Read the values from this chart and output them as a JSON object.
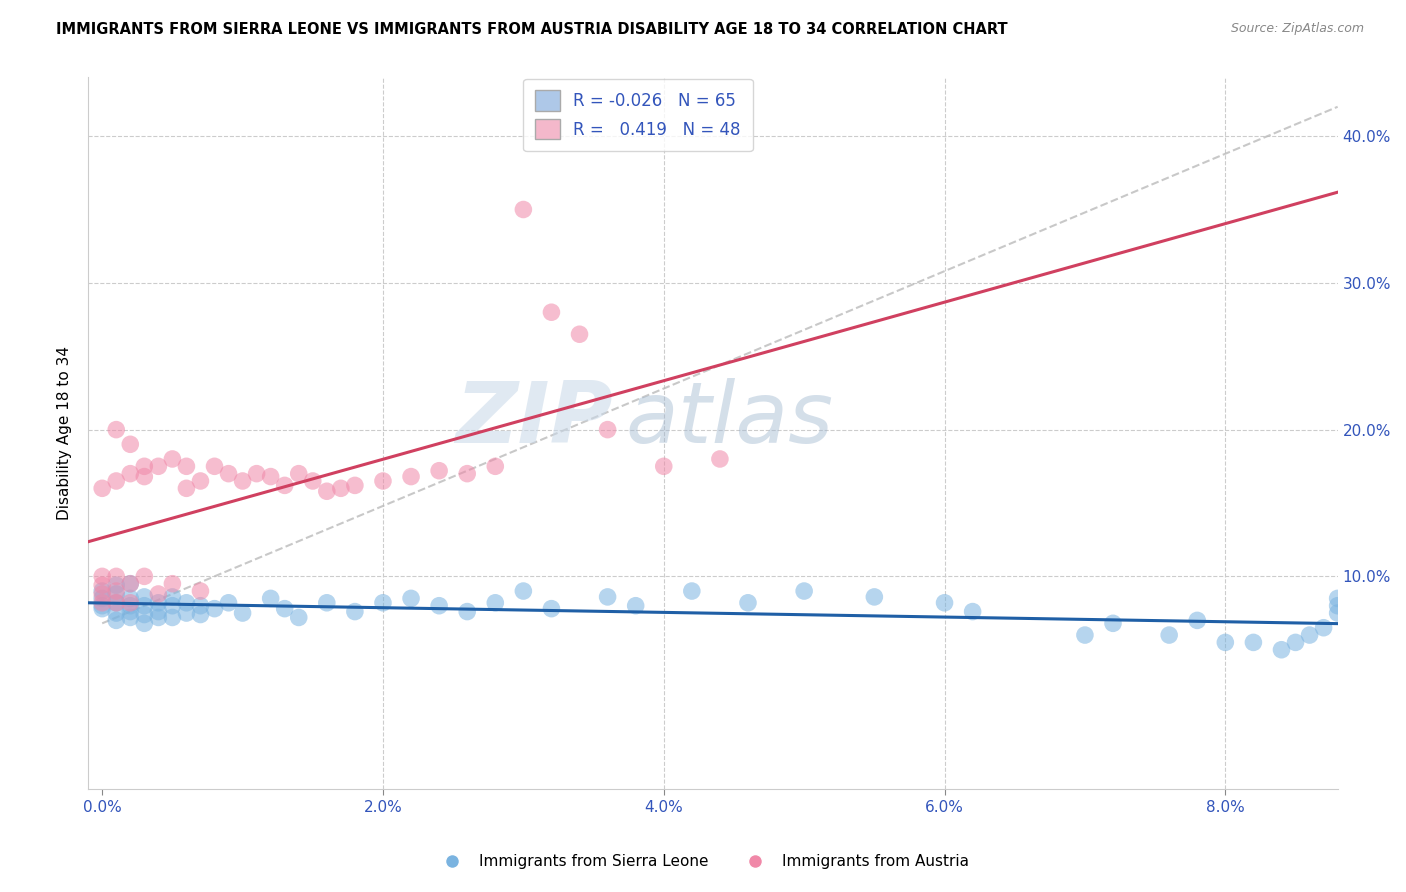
{
  "title": "IMMIGRANTS FROM SIERRA LEONE VS IMMIGRANTS FROM AUSTRIA DISABILITY AGE 18 TO 34 CORRELATION CHART",
  "source": "Source: ZipAtlas.com",
  "ylabel": "Disability Age 18 to 34",
  "x_ticks": [
    0.0,
    0.02,
    0.04,
    0.06,
    0.08
  ],
  "x_tick_labels": [
    "0.0%",
    "2.0%",
    "4.0%",
    "6.0%",
    "8.0%"
  ],
  "y_ticks": [
    0.0,
    0.1,
    0.2,
    0.3,
    0.4
  ],
  "y_tick_labels_right": [
    "",
    "10.0%",
    "20.0%",
    "30.0%",
    "40.0%"
  ],
  "xlim": [
    -0.001,
    0.088
  ],
  "ylim": [
    -0.045,
    0.44
  ],
  "blue_R": "-0.026",
  "blue_N": "65",
  "pink_R": "0.419",
  "pink_N": "48",
  "blue_color": "#aec8e8",
  "pink_color": "#f4b8cb",
  "blue_scatter_color": "#7ab3e0",
  "pink_scatter_color": "#f088a8",
  "watermark_zip": "ZIP",
  "watermark_atlas": "atlas",
  "legend_blue_label": "Immigrants from Sierra Leone",
  "legend_pink_label": "Immigrants from Austria",
  "blue_points_x": [
    0.0,
    0.0,
    0.0,
    0.0,
    0.001,
    0.001,
    0.001,
    0.001,
    0.001,
    0.002,
    0.002,
    0.002,
    0.002,
    0.002,
    0.003,
    0.003,
    0.003,
    0.003,
    0.004,
    0.004,
    0.004,
    0.005,
    0.005,
    0.005,
    0.006,
    0.006,
    0.007,
    0.007,
    0.008,
    0.009,
    0.01,
    0.012,
    0.013,
    0.014,
    0.016,
    0.018,
    0.02,
    0.022,
    0.024,
    0.026,
    0.028,
    0.03,
    0.032,
    0.036,
    0.038,
    0.042,
    0.046,
    0.05,
    0.055,
    0.06,
    0.062,
    0.07,
    0.072,
    0.076,
    0.078,
    0.08,
    0.082,
    0.084,
    0.085,
    0.086,
    0.087,
    0.088,
    0.088,
    0.088
  ],
  "blue_points_y": [
    0.08,
    0.085,
    0.09,
    0.078,
    0.082,
    0.088,
    0.094,
    0.075,
    0.07,
    0.08,
    0.085,
    0.076,
    0.072,
    0.095,
    0.08,
    0.086,
    0.074,
    0.068,
    0.082,
    0.076,
    0.072,
    0.08,
    0.086,
    0.072,
    0.082,
    0.075,
    0.08,
    0.074,
    0.078,
    0.082,
    0.075,
    0.085,
    0.078,
    0.072,
    0.082,
    0.076,
    0.082,
    0.085,
    0.08,
    0.076,
    0.082,
    0.09,
    0.078,
    0.086,
    0.08,
    0.09,
    0.082,
    0.09,
    0.086,
    0.082,
    0.076,
    0.06,
    0.068,
    0.06,
    0.07,
    0.055,
    0.055,
    0.05,
    0.055,
    0.06,
    0.065,
    0.08,
    0.075,
    0.085
  ],
  "pink_points_x": [
    0.0,
    0.0,
    0.0,
    0.0,
    0.0,
    0.001,
    0.001,
    0.001,
    0.001,
    0.001,
    0.002,
    0.002,
    0.002,
    0.002,
    0.003,
    0.003,
    0.003,
    0.004,
    0.004,
    0.005,
    0.005,
    0.006,
    0.006,
    0.007,
    0.007,
    0.008,
    0.009,
    0.01,
    0.011,
    0.012,
    0.013,
    0.014,
    0.015,
    0.016,
    0.017,
    0.018,
    0.02,
    0.022,
    0.024,
    0.026,
    0.028,
    0.03,
    0.032,
    0.034,
    0.036,
    0.04,
    0.044
  ],
  "pink_points_y": [
    0.082,
    0.088,
    0.094,
    0.1,
    0.16,
    0.082,
    0.09,
    0.1,
    0.165,
    0.2,
    0.082,
    0.095,
    0.17,
    0.19,
    0.1,
    0.168,
    0.175,
    0.088,
    0.175,
    0.095,
    0.18,
    0.16,
    0.175,
    0.09,
    0.165,
    0.175,
    0.17,
    0.165,
    0.17,
    0.168,
    0.162,
    0.17,
    0.165,
    0.158,
    0.16,
    0.162,
    0.165,
    0.168,
    0.172,
    0.17,
    0.175,
    0.35,
    0.28,
    0.265,
    0.2,
    0.175,
    0.18
  ]
}
